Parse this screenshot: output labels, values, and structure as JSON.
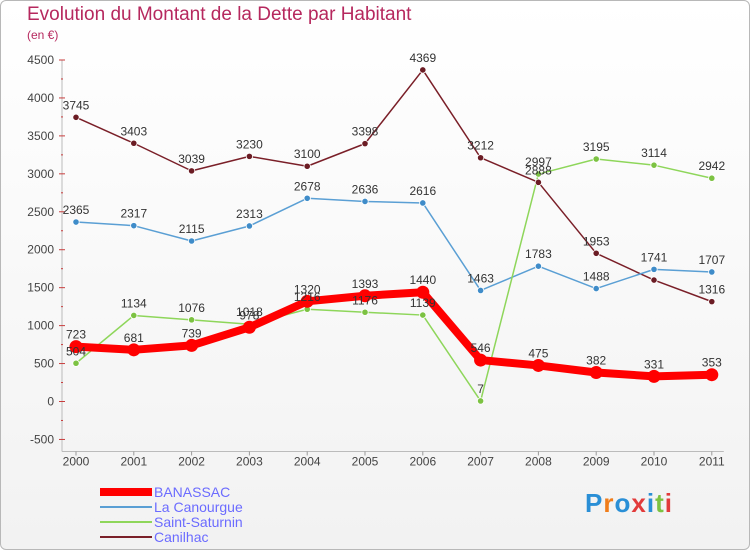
{
  "title": "Evolution du Montant de la Dette par Habitant",
  "subtitle": "(en €)",
  "logo": [
    "P",
    "r",
    "o",
    "x",
    "i",
    "t",
    "i"
  ],
  "logo_colors": [
    "#2a8fd6",
    "#f07d1a",
    "#2a8fd6",
    "#e23b3b",
    "#2a8fd6",
    "#7cc242",
    "#e23b3b"
  ],
  "chart_data": {
    "type": "line",
    "title": "Evolution du Montant de la Dette par Habitant",
    "subtitle": "(en €)",
    "x": [
      "2000",
      "2001",
      "2002",
      "2003",
      "2004",
      "2005",
      "2006",
      "2007",
      "2008",
      "2009",
      "2010",
      "2011"
    ],
    "ylim": [
      -500,
      4500
    ],
    "yticks": [
      -500,
      0,
      500,
      1000,
      1500,
      2000,
      2500,
      3000,
      3500,
      4000,
      4500
    ],
    "grid": false,
    "legend_position": "bottom-left",
    "series": [
      {
        "name": "Canilhac",
        "color": "#7a1f28",
        "marker": "#6b1c24",
        "width": 1.5,
        "values": [
          3745,
          3403,
          3039,
          3230,
          3100,
          3398,
          4369,
          3212,
          2888,
          1953,
          1600,
          1316
        ],
        "labels": [
          "3745",
          "3403",
          "3039",
          "3230",
          "3100",
          "3398",
          "4369",
          "3212",
          "2888",
          "1953",
          "",
          "1316"
        ]
      },
      {
        "name": "La Canourgue",
        "color": "#5a9fd4",
        "marker": "#3f8cc9",
        "width": 1.5,
        "values": [
          2365,
          2317,
          2115,
          2313,
          2678,
          2636,
          2616,
          1463,
          1783,
          1488,
          1741,
          1707
        ],
        "labels": [
          "2365",
          "2317",
          "2115",
          "2313",
          "2678",
          "2636",
          "2616",
          "1463",
          "1783",
          "1488",
          "1741",
          "1707"
        ]
      },
      {
        "name": "Saint-Saturnin",
        "color": "#8ed65a",
        "marker": "#7cc242",
        "width": 1.5,
        "values": [
          504,
          1134,
          1076,
          1018,
          1216,
          1176,
          1139,
          7,
          2997,
          3195,
          3114,
          2942
        ],
        "labels": [
          "504",
          "1134",
          "1076",
          "1018",
          "1216",
          "1176",
          "1139",
          "7",
          "2997",
          "3195",
          "3114",
          "2942"
        ]
      },
      {
        "name": "BANASSAC",
        "color": "#ff0000",
        "marker": "#ff0000",
        "width": 8,
        "values": [
          723,
          681,
          739,
          978,
          1320,
          1393,
          1440,
          546,
          475,
          382,
          331,
          353
        ],
        "labels": [
          "723",
          "681",
          "739",
          "978",
          "1320",
          "1393",
          "1440",
          "546",
          "475",
          "382",
          "331",
          "353"
        ]
      }
    ]
  },
  "legend": [
    {
      "name": "BANASSAC",
      "color": "#ff0000",
      "thick": 8
    },
    {
      "name": "La Canourgue",
      "color": "#5a9fd4",
      "thick": 2
    },
    {
      "name": "Saint-Saturnin",
      "color": "#8ed65a",
      "thick": 2
    },
    {
      "name": "Canilhac",
      "color": "#7a1f28",
      "thick": 2
    }
  ]
}
